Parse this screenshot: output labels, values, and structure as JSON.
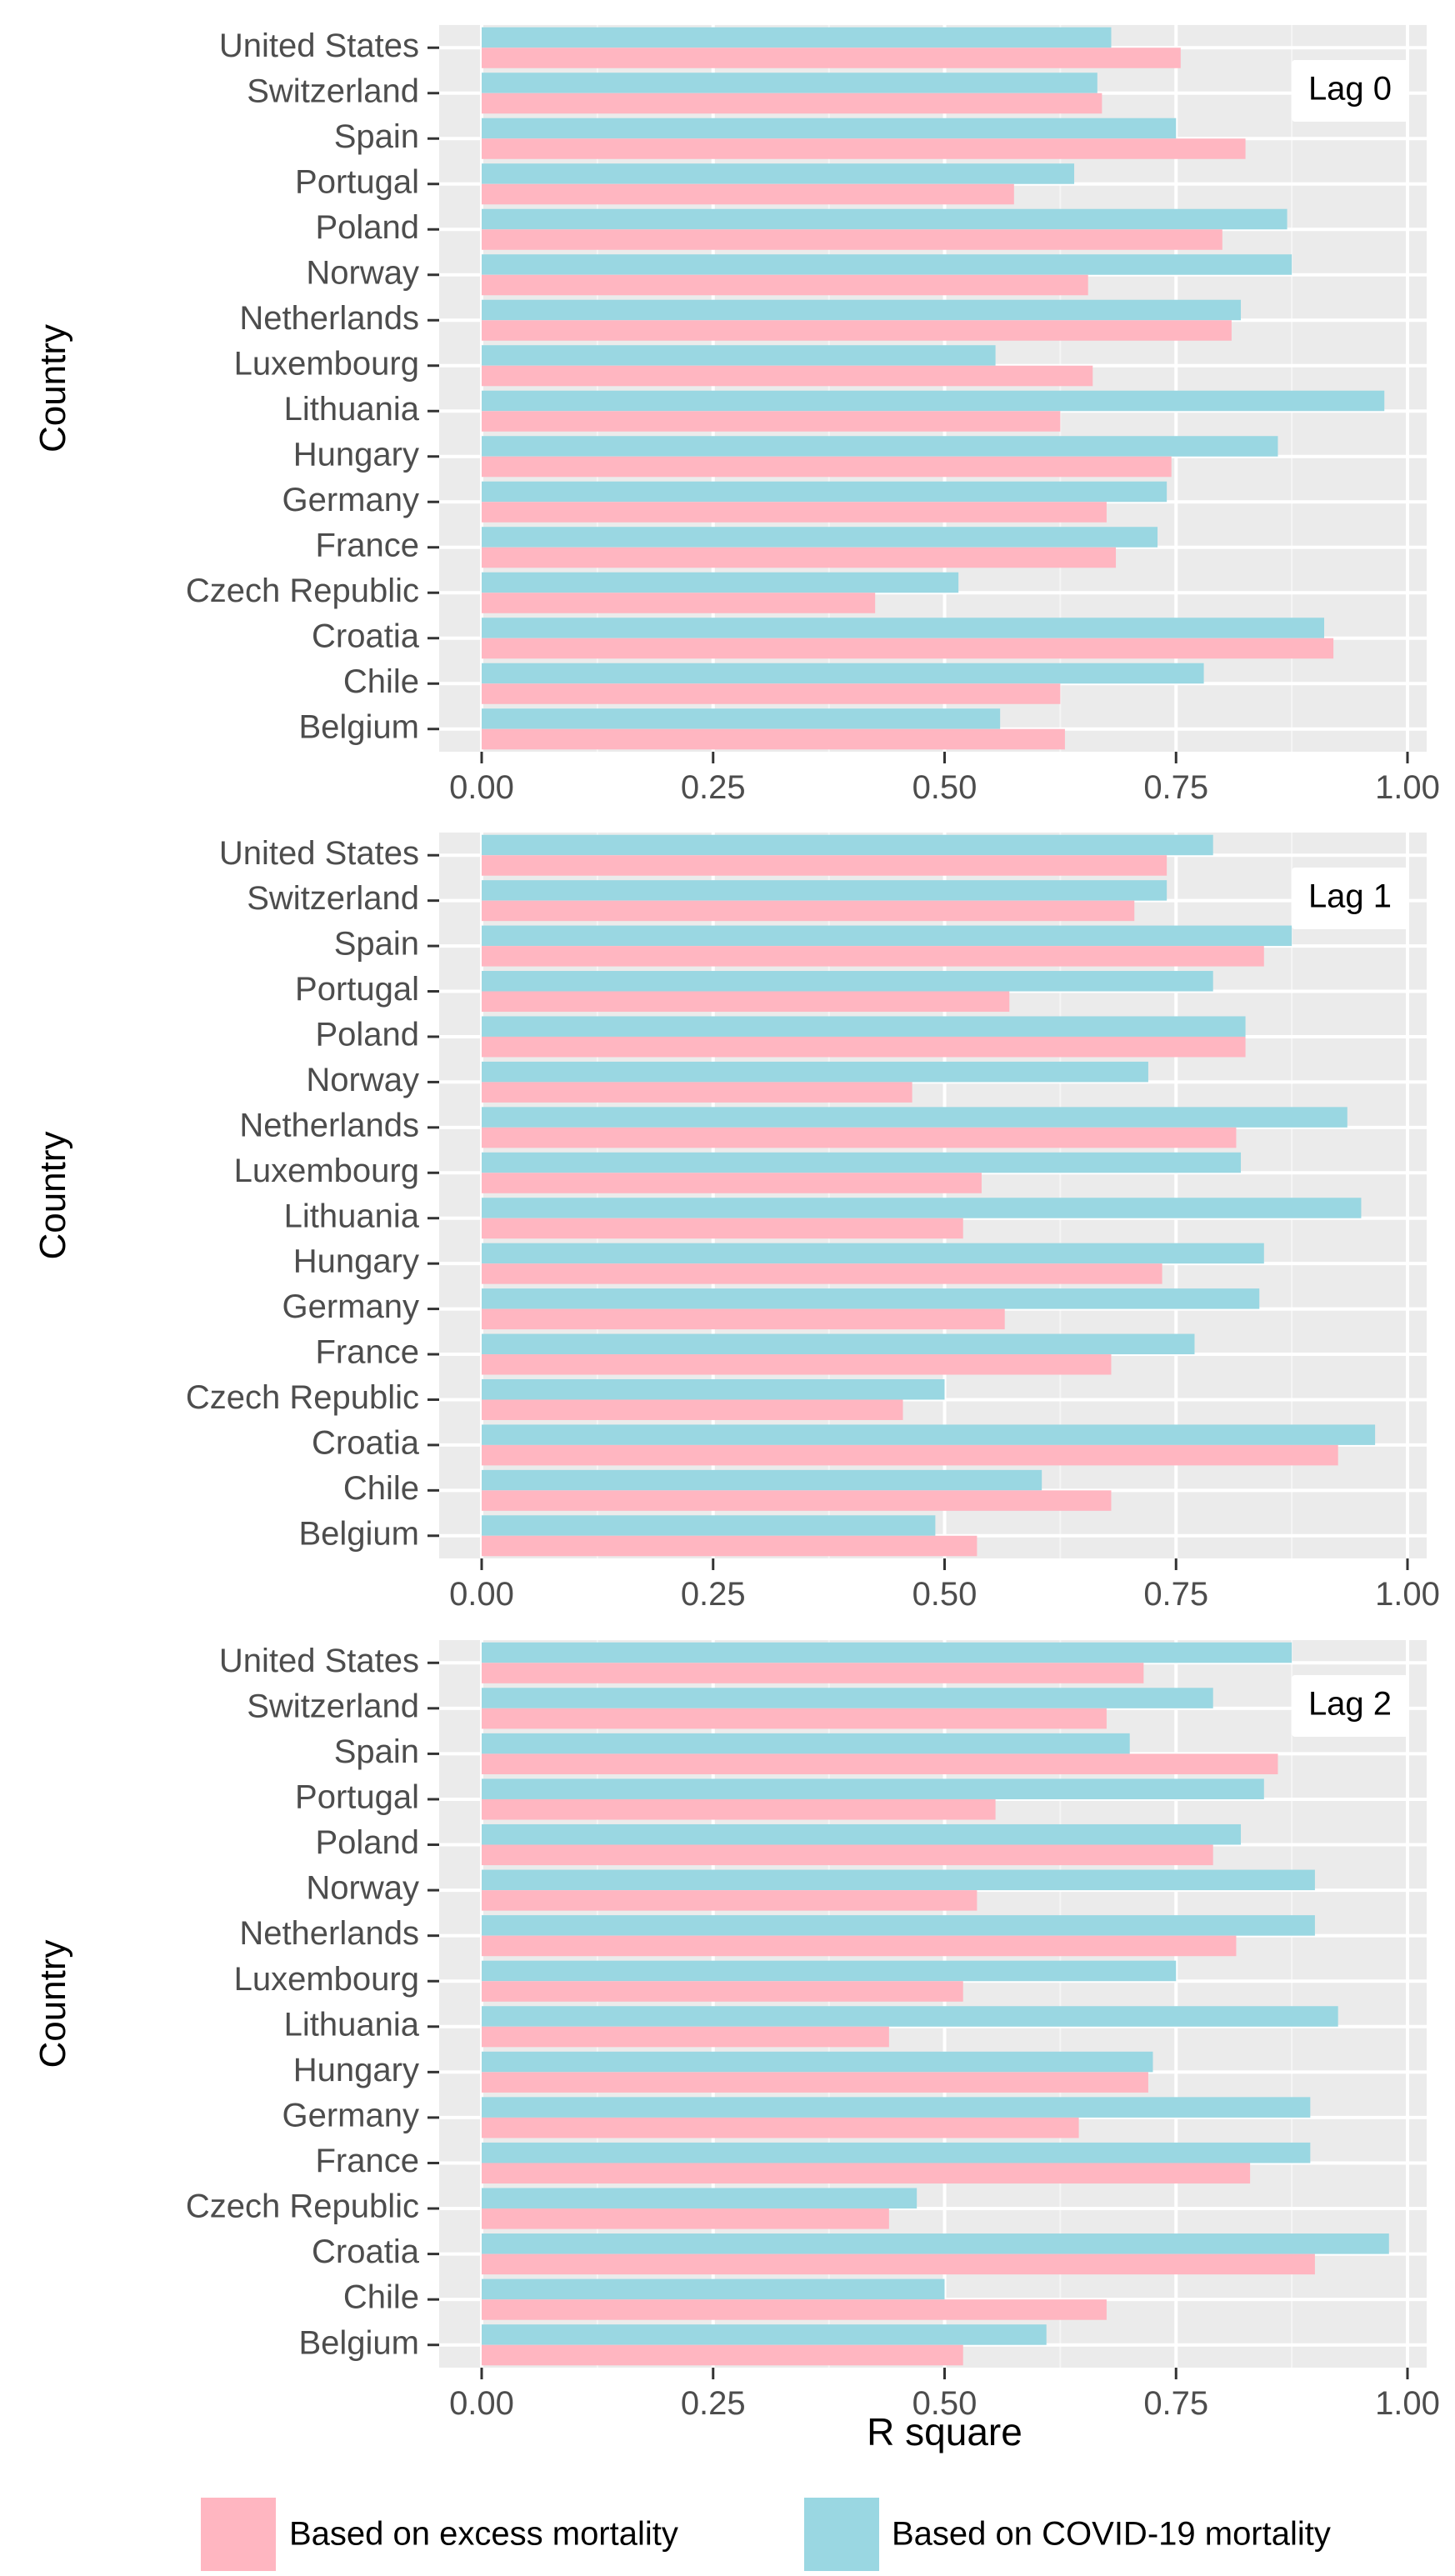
{
  "chart_data": {
    "type": "bar",
    "orientation": "horizontal",
    "ylabel": "Country",
    "xlabel": "R square",
    "xlim": [
      0,
      1
    ],
    "xticks": [
      "0.00",
      "0.25",
      "0.50",
      "0.75",
      "1.00"
    ],
    "tick_values": [
      0,
      0.25,
      0.5,
      0.75,
      1
    ],
    "grid": true,
    "legend_position": "bottom",
    "categories": [
      "United States",
      "Switzerland",
      "Spain",
      "Portugal",
      "Poland",
      "Norway",
      "Netherlands",
      "Luxembourg",
      "Lithuania",
      "Hungary",
      "Germany",
      "France",
      "Czech Republic",
      "Croatia",
      "Chile",
      "Belgium"
    ],
    "legend": [
      {
        "name": "Based on excess mortality",
        "color": "#FFB6C1"
      },
      {
        "name": "Based on COVID-19 mortality",
        "color": "#9AD7E2"
      }
    ],
    "panels": [
      {
        "label": "Lag 0",
        "series": [
          {
            "name": "Based on COVID-19 mortality",
            "color": "#9AD7E2",
            "values": [
              0.68,
              0.665,
              0.75,
              0.64,
              0.87,
              0.875,
              0.82,
              0.555,
              0.975,
              0.86,
              0.74,
              0.73,
              0.515,
              0.91,
              0.78,
              0.56
            ]
          },
          {
            "name": "Based on excess mortality",
            "color": "#FFB6C1",
            "values": [
              0.755,
              0.67,
              0.825,
              0.575,
              0.8,
              0.655,
              0.81,
              0.66,
              0.625,
              0.745,
              0.675,
              0.685,
              0.425,
              0.92,
              0.625,
              0.63
            ]
          }
        ]
      },
      {
        "label": "Lag 1",
        "series": [
          {
            "name": "Based on COVID-19 mortality",
            "color": "#9AD7E2",
            "values": [
              0.79,
              0.74,
              0.875,
              0.79,
              0.825,
              0.72,
              0.935,
              0.82,
              0.95,
              0.845,
              0.84,
              0.77,
              0.5,
              0.965,
              0.605,
              0.49
            ]
          },
          {
            "name": "Based on excess mortality",
            "color": "#FFB6C1",
            "values": [
              0.74,
              0.705,
              0.845,
              0.57,
              0.825,
              0.465,
              0.815,
              0.54,
              0.52,
              0.735,
              0.565,
              0.68,
              0.455,
              0.925,
              0.68,
              0.535
            ]
          }
        ]
      },
      {
        "label": "Lag 2",
        "series": [
          {
            "name": "Based on COVID-19 mortality",
            "color": "#9AD7E2",
            "values": [
              0.875,
              0.79,
              0.7,
              0.845,
              0.82,
              0.9,
              0.9,
              0.75,
              0.925,
              0.725,
              0.895,
              0.895,
              0.47,
              0.98,
              0.5,
              0.61
            ]
          },
          {
            "name": "Based on excess mortality",
            "color": "#FFB6C1",
            "values": [
              0.715,
              0.675,
              0.86,
              0.555,
              0.79,
              0.535,
              0.815,
              0.52,
              0.44,
              0.72,
              0.645,
              0.83,
              0.44,
              0.9,
              0.675,
              0.52
            ]
          }
        ]
      }
    ]
  }
}
